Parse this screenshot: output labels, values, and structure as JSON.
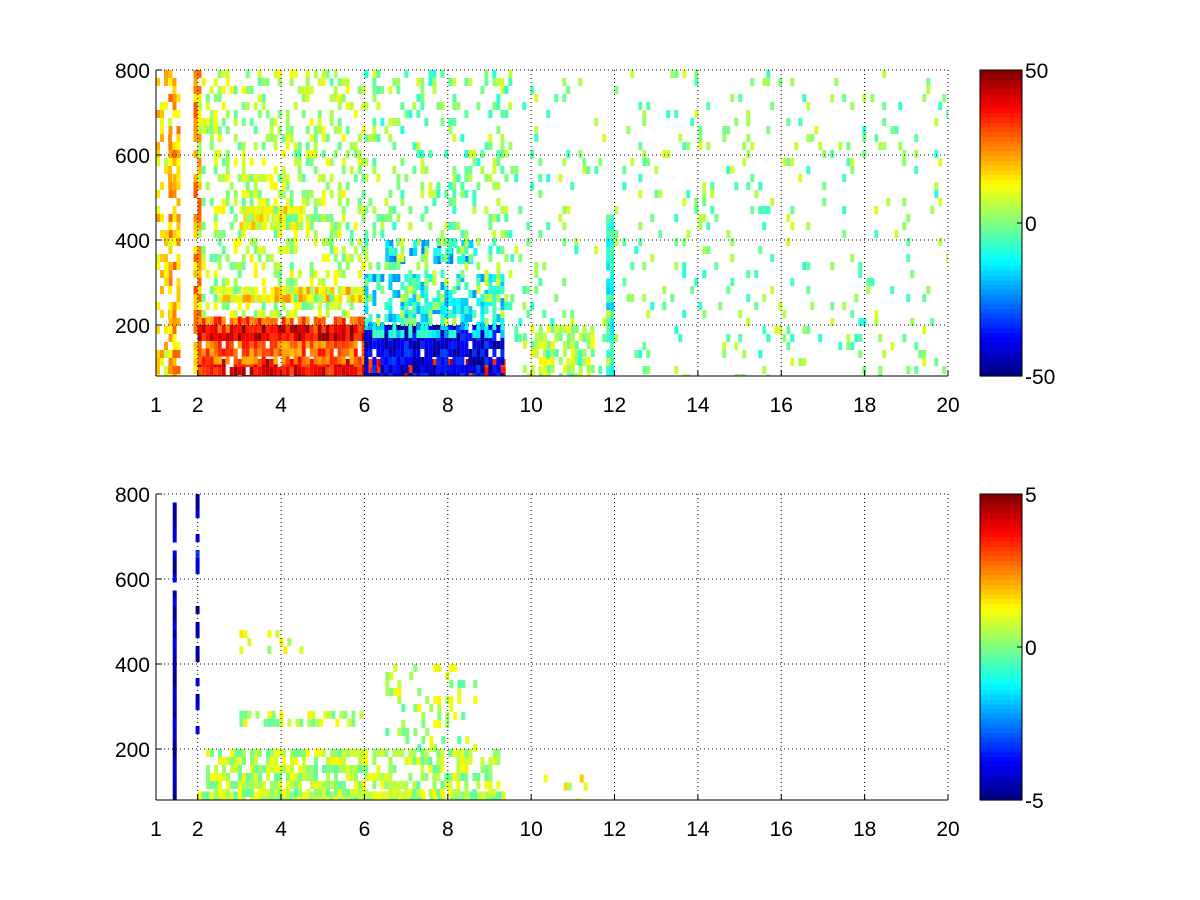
{
  "figure": {
    "panels_layout": "2 rows, 1 column, each with a colorbar on the right"
  },
  "chart_data": [
    {
      "type": "heatmap",
      "title": "",
      "xlabel": "",
      "ylabel": "",
      "xlim": [
        1,
        20
      ],
      "ylim": [
        80,
        800
      ],
      "xticks": [
        1,
        2,
        4,
        6,
        8,
        10,
        12,
        14,
        16,
        18,
        20
      ],
      "yticks": [
        200,
        400,
        600,
        800
      ],
      "grid": "dotted",
      "colormap": "jet",
      "clim": [
        -50,
        50
      ],
      "colorbar_ticks": [
        -50,
        0,
        50
      ],
      "colorbar_position": "right",
      "regions": [
        {
          "x": [
            1.0,
            1.3
          ],
          "y": [
            80,
            800
          ],
          "density": 0.4,
          "color_value": 15
        },
        {
          "x": [
            1.3,
            1.5
          ],
          "y": [
            80,
            800
          ],
          "density": 0.7,
          "color_value": 20
        },
        {
          "x": [
            1.9,
            2.0
          ],
          "y": [
            80,
            800
          ],
          "density": 0.8,
          "color_value": 22
        },
        {
          "x": [
            2.0,
            9.3
          ],
          "y": [
            80,
            120
          ],
          "density": 0.95,
          "color_value": 38
        },
        {
          "x": [
            2.0,
            6.0
          ],
          "y": [
            120,
            220
          ],
          "density": 0.85,
          "color_value": 28
        },
        {
          "x": [
            2.0,
            6.0
          ],
          "y": [
            180,
            200
          ],
          "density": 0.9,
          "color_value": 40
        },
        {
          "x": [
            2.5,
            6.0
          ],
          "y": [
            270,
            290
          ],
          "density": 0.85,
          "color_value": 15
        },
        {
          "x": [
            6.0,
            9.3
          ],
          "y": [
            80,
            200
          ],
          "density": 0.9,
          "color_value": -40
        },
        {
          "x": [
            6.0,
            9.3
          ],
          "y": [
            180,
            320
          ],
          "density": 0.6,
          "color_value": -15
        },
        {
          "x": [
            6.5,
            8.7
          ],
          "y": [
            360,
            400
          ],
          "density": 0.6,
          "color_value": -18
        },
        {
          "x": [
            3.0,
            4.5
          ],
          "y": [
            440,
            480
          ],
          "density": 0.7,
          "color_value": 12
        },
        {
          "x": [
            2.0,
            6.0
          ],
          "y": [
            220,
            800
          ],
          "density": 0.35,
          "color_value": 5
        },
        {
          "x": [
            6.0,
            9.5
          ],
          "y": [
            200,
            800
          ],
          "density": 0.25,
          "color_value": 0
        },
        {
          "x": [
            9.8,
            11.5
          ],
          "y": [
            80,
            200
          ],
          "density": 0.6,
          "color_value": 5
        },
        {
          "x": [
            11.8,
            11.95
          ],
          "y": [
            80,
            460
          ],
          "density": 0.9,
          "color_value": -10
        },
        {
          "x": [
            9.5,
            20.0
          ],
          "y": [
            80,
            800
          ],
          "density": 0.09,
          "color_value": 0
        }
      ]
    },
    {
      "type": "heatmap",
      "title": "",
      "xlabel": "",
      "ylabel": "",
      "xlim": [
        1,
        20
      ],
      "ylim": [
        80,
        800
      ],
      "xticks": [
        1,
        2,
        4,
        6,
        8,
        10,
        12,
        14,
        16,
        18,
        20
      ],
      "yticks": [
        200,
        400,
        600,
        800
      ],
      "grid": "dotted",
      "colormap": "jet",
      "clim": [
        -5,
        5
      ],
      "colorbar_ticks": [
        -5,
        0,
        5
      ],
      "colorbar_position": "right",
      "regions": [
        {
          "x": [
            1.4,
            1.45
          ],
          "y": [
            80,
            780
          ],
          "density": 0.9,
          "color_value": -4.5
        },
        {
          "x": [
            1.95,
            2.0
          ],
          "y": [
            230,
            800
          ],
          "density": 0.6,
          "color_value": -4
        },
        {
          "x": [
            2.0,
            9.3
          ],
          "y": [
            80,
            100
          ],
          "density": 0.95,
          "color_value": 0.5
        },
        {
          "x": [
            2.2,
            6.0
          ],
          "y": [
            100,
            200
          ],
          "density": 0.75,
          "color_value": 0.5
        },
        {
          "x": [
            6.0,
            9.2
          ],
          "y": [
            100,
            200
          ],
          "density": 0.55,
          "color_value": 0.5
        },
        {
          "x": [
            3.0,
            6.0
          ],
          "y": [
            270,
            290
          ],
          "density": 0.55,
          "color_value": 0.5
        },
        {
          "x": [
            6.5,
            8.7
          ],
          "y": [
            200,
            400
          ],
          "density": 0.25,
          "color_value": 0.5
        },
        {
          "x": [
            3.0,
            4.5
          ],
          "y": [
            440,
            480
          ],
          "density": 0.3,
          "color_value": 0.8
        },
        {
          "x": [
            10.3,
            11.3
          ],
          "y": [
            80,
            140
          ],
          "density": 0.2,
          "color_value": 1
        }
      ]
    }
  ]
}
